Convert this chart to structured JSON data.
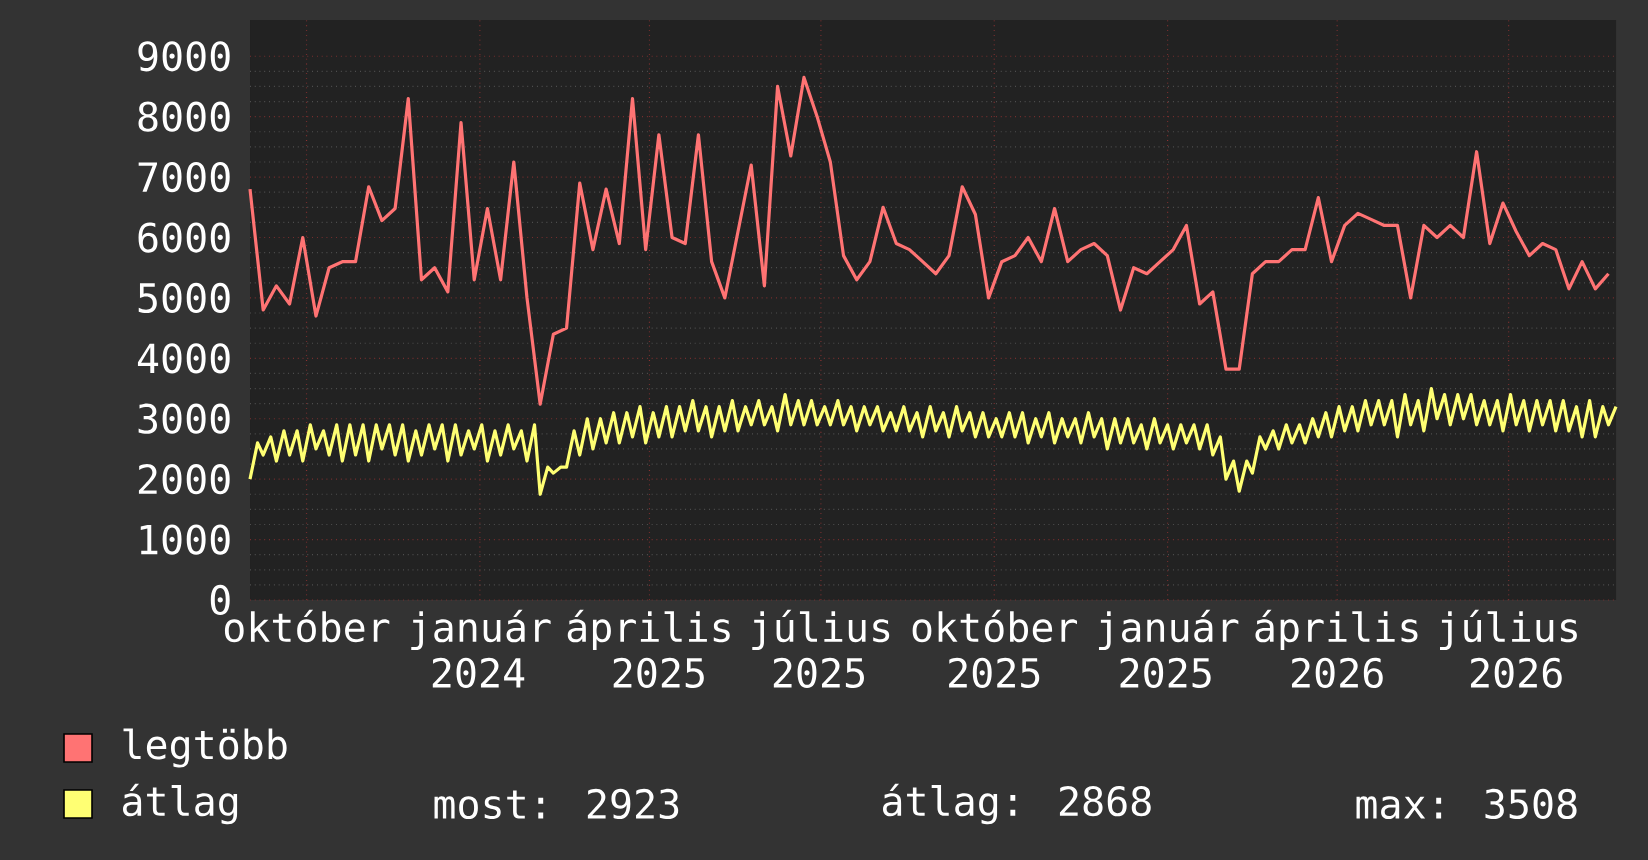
{
  "chart_data": {
    "type": "line",
    "xlim": [
      "2024-09-01",
      "2026-08-27"
    ],
    "ylim": [
      0,
      9600
    ],
    "xticks": [
      {
        "value": "2024-10-01",
        "label": "október"
      },
      {
        "value": "2025-01-01",
        "label": "január"
      },
      {
        "value": "2025-04-01",
        "label": "április"
      },
      {
        "value": "2025-07-01",
        "label": "július"
      },
      {
        "value": "2025-10-01",
        "label": "október"
      },
      {
        "value": "2026-01-01",
        "label": "január"
      },
      {
        "value": "2026-04-01",
        "label": "április"
      },
      {
        "value": "2026-07-01",
        "label": "július"
      }
    ],
    "x2lim": [
      "2024-09-01",
      "2026-08-27"
    ],
    "x2ticks": [
      {
        "value": "2024-12-31",
        "label": "2024"
      },
      {
        "value": "2025-04-06",
        "label": "2025"
      },
      {
        "value": "2025-06-30",
        "label": "2025"
      },
      {
        "value": "2025-10-01",
        "label": "2025"
      },
      {
        "value": "2025-12-31",
        "label": "2025"
      },
      {
        "value": "2026-04-01",
        "label": "2026"
      },
      {
        "value": "2026-07-05",
        "label": "2026"
      }
    ],
    "yticks": [
      0,
      1000,
      2000,
      3000,
      4000,
      5000,
      6000,
      7000,
      8000,
      9000
    ],
    "grid": true,
    "legend": "bottom left",
    "marker": "none",
    "line_style": "solid",
    "annotations": [
      "most: 2923",
      "átlag: 2868",
      "max: 3508"
    ],
    "series": [
      {
        "name": "legtöbb",
        "color": "#ff7373",
        "x": [
          "2024-09-01",
          "2024-09-08",
          "2024-09-15",
          "2024-09-22",
          "2024-09-29",
          "2024-10-06",
          "2024-10-13",
          "2024-10-20",
          "2024-10-27",
          "2024-11-03",
          "2024-11-10",
          "2024-11-17",
          "2024-11-24",
          "2024-12-01",
          "2024-12-08",
          "2024-12-15",
          "2024-12-22",
          "2024-12-29",
          "2025-01-05",
          "2025-01-12",
          "2025-01-19",
          "2025-01-26",
          "2025-02-02",
          "2025-02-09",
          "2025-02-16",
          "2025-02-23",
          "2025-03-02",
          "2025-03-09",
          "2025-03-16",
          "2025-03-23",
          "2025-03-30",
          "2025-04-06",
          "2025-04-13",
          "2025-04-20",
          "2025-04-27",
          "2025-05-04",
          "2025-05-11",
          "2025-05-18",
          "2025-05-25",
          "2025-06-01",
          "2025-06-08",
          "2025-06-15",
          "2025-06-22",
          "2025-06-29",
          "2025-07-06",
          "2025-07-13",
          "2025-07-20",
          "2025-07-27",
          "2025-08-03",
          "2025-08-10",
          "2025-08-17",
          "2025-08-24",
          "2025-08-31",
          "2025-09-07",
          "2025-09-14",
          "2025-09-21",
          "2025-09-28",
          "2025-10-05",
          "2025-10-12",
          "2025-10-19",
          "2025-10-26",
          "2025-11-02",
          "2025-11-09",
          "2025-11-16",
          "2025-11-23",
          "2025-11-30",
          "2025-12-07",
          "2025-12-14",
          "2025-12-21",
          "2025-12-28",
          "2026-01-04",
          "2026-01-11",
          "2026-01-18",
          "2026-01-25",
          "2026-02-01",
          "2026-02-08",
          "2026-02-15",
          "2026-02-22",
          "2026-03-01",
          "2026-03-08",
          "2026-03-15",
          "2026-03-22",
          "2026-03-29",
          "2026-04-05",
          "2026-04-12",
          "2026-04-19",
          "2026-04-26",
          "2026-05-03",
          "2026-05-10",
          "2026-05-17",
          "2026-05-24",
          "2026-05-31",
          "2026-06-07",
          "2026-06-14",
          "2026-06-21",
          "2026-06-28",
          "2026-07-05",
          "2026-07-12",
          "2026-07-19",
          "2026-07-26",
          "2026-08-02",
          "2026-08-09",
          "2026-08-16",
          "2026-08-23"
        ],
        "values": [
          6800,
          4800,
          5200,
          4900,
          6000,
          4700,
          5500,
          5600,
          5600,
          6840,
          6280,
          6480,
          8300,
          5300,
          5500,
          5100,
          7900,
          5300,
          6480,
          5300,
          7250,
          5000,
          3240,
          4400,
          4500,
          6900,
          5800,
          6800,
          5900,
          8300,
          5800,
          7700,
          6000,
          5900,
          7700,
          5600,
          5000,
          6100,
          7200,
          5200,
          8500,
          7350,
          8650,
          8000,
          7250,
          5700,
          5300,
          5600,
          6500,
          5900,
          5800,
          5600,
          5400,
          5700,
          6840,
          6380,
          5000,
          5600,
          5700,
          6000,
          5600,
          6480,
          5600,
          5800,
          5900,
          5700,
          4800,
          5500,
          5400,
          5600,
          5800,
          6200,
          4900,
          5100,
          3820,
          3820,
          5400,
          5600,
          5600,
          5800,
          5800,
          6660,
          5600,
          6200,
          6400,
          6300,
          6200,
          6200,
          5000,
          6200,
          6000,
          6200,
          6000,
          7420,
          5900,
          6570,
          6100,
          5700,
          5900,
          5800,
          5150,
          5600,
          5150,
          5400
        ]
      },
      {
        "name": "átlag",
        "color": "#ffff73",
        "x": [
          "2024-09-01",
          "2024-09-05",
          "2024-09-08",
          "2024-09-12",
          "2024-09-15",
          "2024-09-19",
          "2024-09-22",
          "2024-09-26",
          "2024-09-29",
          "2024-10-03",
          "2024-10-06",
          "2024-10-10",
          "2024-10-13",
          "2024-10-17",
          "2024-10-20",
          "2024-10-24",
          "2024-10-27",
          "2024-10-31",
          "2024-11-03",
          "2024-11-07",
          "2024-11-10",
          "2024-11-14",
          "2024-11-17",
          "2024-11-21",
          "2024-11-24",
          "2024-11-28",
          "2024-12-01",
          "2024-12-05",
          "2024-12-08",
          "2024-12-12",
          "2024-12-15",
          "2024-12-19",
          "2024-12-22",
          "2024-12-26",
          "2024-12-29",
          "2025-01-02",
          "2025-01-05",
          "2025-01-09",
          "2025-01-12",
          "2025-01-16",
          "2025-01-19",
          "2025-01-23",
          "2025-01-26",
          "2025-01-30",
          "2025-02-02",
          "2025-02-06",
          "2025-02-09",
          "2025-02-13",
          "2025-02-16",
          "2025-02-20",
          "2025-02-23",
          "2025-02-27",
          "2025-03-02",
          "2025-03-06",
          "2025-03-09",
          "2025-03-13",
          "2025-03-16",
          "2025-03-20",
          "2025-03-23",
          "2025-03-27",
          "2025-03-30",
          "2025-04-03",
          "2025-04-06",
          "2025-04-10",
          "2025-04-13",
          "2025-04-17",
          "2025-04-20",
          "2025-04-24",
          "2025-04-27",
          "2025-05-01",
          "2025-05-04",
          "2025-05-08",
          "2025-05-11",
          "2025-05-15",
          "2025-05-18",
          "2025-05-22",
          "2025-05-25",
          "2025-05-29",
          "2025-06-01",
          "2025-06-05",
          "2025-06-08",
          "2025-06-12",
          "2025-06-15",
          "2025-06-19",
          "2025-06-22",
          "2025-06-26",
          "2025-06-29",
          "2025-07-03",
          "2025-07-06",
          "2025-07-10",
          "2025-07-13",
          "2025-07-17",
          "2025-07-20",
          "2025-07-24",
          "2025-07-27",
          "2025-07-31",
          "2025-08-03",
          "2025-08-07",
          "2025-08-10",
          "2025-08-14",
          "2025-08-17",
          "2025-08-21",
          "2025-08-24",
          "2025-08-28",
          "2025-08-31",
          "2025-09-04",
          "2025-09-07",
          "2025-09-11",
          "2025-09-14",
          "2025-09-18",
          "2025-09-21",
          "2025-09-25",
          "2025-09-28",
          "2025-10-02",
          "2025-10-05",
          "2025-10-09",
          "2025-10-12",
          "2025-10-16",
          "2025-10-19",
          "2025-10-23",
          "2025-10-26",
          "2025-10-30",
          "2025-11-02",
          "2025-11-06",
          "2025-11-09",
          "2025-11-13",
          "2025-11-16",
          "2025-11-20",
          "2025-11-23",
          "2025-11-27",
          "2025-11-30",
          "2025-12-04",
          "2025-12-07",
          "2025-12-11",
          "2025-12-14",
          "2025-12-18",
          "2025-12-21",
          "2025-12-25",
          "2025-12-28",
          "2026-01-01",
          "2026-01-04",
          "2026-01-08",
          "2026-01-11",
          "2026-01-15",
          "2026-01-18",
          "2026-01-22",
          "2026-01-25",
          "2026-01-29",
          "2026-02-01",
          "2026-02-05",
          "2026-02-08",
          "2026-02-12",
          "2026-02-15",
          "2026-02-19",
          "2026-02-22",
          "2026-02-26",
          "2026-03-01",
          "2026-03-05",
          "2026-03-08",
          "2026-03-12",
          "2026-03-15",
          "2026-03-19",
          "2026-03-22",
          "2026-03-26",
          "2026-03-29",
          "2026-04-02",
          "2026-04-05",
          "2026-04-09",
          "2026-04-12",
          "2026-04-16",
          "2026-04-19",
          "2026-04-23",
          "2026-04-26",
          "2026-04-30",
          "2026-05-03",
          "2026-05-07",
          "2026-05-10",
          "2026-05-14",
          "2026-05-17",
          "2026-05-21",
          "2026-05-24",
          "2026-05-28",
          "2026-05-31",
          "2026-06-04",
          "2026-06-07",
          "2026-06-11",
          "2026-06-14",
          "2026-06-18",
          "2026-06-21",
          "2026-06-25",
          "2026-06-28",
          "2026-07-02",
          "2026-07-05",
          "2026-07-09",
          "2026-07-12",
          "2026-07-16",
          "2026-07-19",
          "2026-07-23",
          "2026-07-26",
          "2026-07-30",
          "2026-08-02",
          "2026-08-06",
          "2026-08-09",
          "2026-08-13",
          "2026-08-16",
          "2026-08-20",
          "2026-08-23",
          "2026-08-27"
        ],
        "values": [
          2000,
          2600,
          2400,
          2700,
          2300,
          2800,
          2400,
          2800,
          2300,
          2900,
          2500,
          2800,
          2400,
          2900,
          2300,
          2900,
          2400,
          2900,
          2300,
          2900,
          2500,
          2900,
          2400,
          2900,
          2300,
          2800,
          2400,
          2900,
          2500,
          2900,
          2300,
          2900,
          2400,
          2800,
          2500,
          2900,
          2300,
          2800,
          2400,
          2900,
          2500,
          2800,
          2300,
          2900,
          1750,
          2200,
          2100,
          2200,
          2200,
          2800,
          2400,
          3000,
          2500,
          3000,
          2600,
          3100,
          2600,
          3100,
          2700,
          3200,
          2600,
          3100,
          2700,
          3200,
          2700,
          3200,
          2800,
          3300,
          2800,
          3200,
          2700,
          3200,
          2800,
          3300,
          2800,
          3200,
          2900,
          3300,
          2900,
          3200,
          2800,
          3400,
          2900,
          3300,
          2900,
          3300,
          2900,
          3200,
          2900,
          3300,
          2900,
          3200,
          2800,
          3200,
          2900,
          3200,
          2800,
          3100,
          2800,
          3200,
          2800,
          3100,
          2700,
          3200,
          2800,
          3100,
          2700,
          3200,
          2800,
          3100,
          2700,
          3100,
          2700,
          3000,
          2700,
          3100,
          2700,
          3100,
          2600,
          3000,
          2700,
          3100,
          2600,
          3000,
          2700,
          3000,
          2600,
          3100,
          2700,
          3000,
          2500,
          3000,
          2600,
          3000,
          2600,
          2900,
          2500,
          3000,
          2600,
          2900,
          2500,
          2900,
          2600,
          2900,
          2500,
          2900,
          2400,
          2700,
          2000,
          2300,
          1800,
          2300,
          2100,
          2700,
          2500,
          2800,
          2500,
          2900,
          2600,
          2900,
          2600,
          3000,
          2700,
          3100,
          2700,
          3200,
          2800,
          3200,
          2800,
          3300,
          2900,
          3300,
          2900,
          3300,
          2700,
          3400,
          2900,
          3300,
          2800,
          3500,
          3000,
          3400,
          2900,
          3400,
          3000,
          3400,
          2900,
          3300,
          2900,
          3300,
          2800,
          3400,
          2900,
          3300,
          2800,
          3300,
          2900,
          3300,
          2800,
          3300,
          2800,
          3200,
          2700,
          3300,
          2700,
          3200,
          2900,
          3200
        ]
      }
    ]
  }
}
